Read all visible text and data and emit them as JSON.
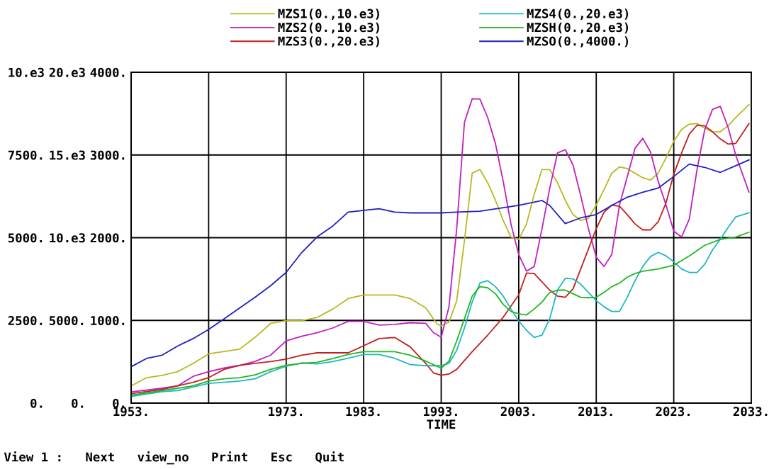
{
  "chart_data": {
    "type": "line",
    "xlabel": "TIME",
    "annotations": [
      "View 1 :   Next   view_no   Print   Esc   Quit"
    ],
    "xlim": [
      1953,
      2033
    ],
    "xticks": [
      {
        "value": 1953,
        "label": "1953."
      },
      {
        "value": 1963,
        "label": null
      },
      {
        "value": 1973,
        "label": "1973."
      },
      {
        "value": 1983,
        "label": "1983."
      },
      {
        "value": 1993,
        "label": "1993."
      },
      {
        "value": 2003,
        "label": "2003."
      },
      {
        "value": 2013,
        "label": "2013."
      },
      {
        "value": 2023,
        "label": "2023."
      },
      {
        "value": 2033,
        "label": "2033."
      }
    ],
    "ylim": [
      0,
      10000
    ],
    "yticks": [
      {
        "value": 0,
        "label": "0."
      },
      {
        "value": 2500,
        "label": "2500."
      },
      {
        "value": 5000,
        "label": "5000."
      },
      {
        "value": 7500,
        "label": "7500."
      },
      {
        "value": 10000,
        "label": "10.e3"
      }
    ],
    "y2lim": [
      0,
      20000
    ],
    "y2ticks": [
      {
        "value": 0,
        "label": "0."
      },
      {
        "value": 5000,
        "label": "5000."
      },
      {
        "value": 10000,
        "label": "10.e3"
      },
      {
        "value": 15000,
        "label": "15.e3"
      },
      {
        "value": 20000,
        "label": "20.e3"
      }
    ],
    "y3lim": [
      0,
      4000
    ],
    "y3ticks": [
      {
        "value": 0,
        "label": "0."
      },
      {
        "value": 1000,
        "label": "1000."
      },
      {
        "value": 2000,
        "label": "2000."
      },
      {
        "value": 3000,
        "label": "3000."
      },
      {
        "value": 4000,
        "label": "4000."
      }
    ],
    "grid": true,
    "legend": "top",
    "marker": "none",
    "line_style": "solid",
    "series": [
      {
        "name": "MZS1(0.,10.e3)",
        "color": "#b8b820",
        "x": [
          1953,
          1955,
          1957,
          1959,
          1961,
          1963,
          1965,
          1967,
          1969,
          1971,
          1973,
          1975,
          1977,
          1979,
          1981,
          1983,
          1987,
          1989,
          1991,
          1992.5,
          1993,
          1994,
          1995,
          1996,
          1997,
          1998,
          1999,
          2000,
          2001,
          2002,
          2003,
          2004,
          2005,
          2006,
          2007,
          2008,
          2009,
          2010,
          2011,
          2012,
          2013,
          2014,
          2015,
          2016,
          2017,
          2018,
          2019,
          2020,
          2021,
          2022,
          2023,
          2024,
          2025,
          2026,
          2027,
          2028,
          2029,
          2030,
          2031,
          2032.7
        ],
        "values": [
          520,
          770,
          840,
          950,
          1200,
          1490,
          1560,
          1630,
          1990,
          2410,
          2490,
          2490,
          2590,
          2840,
          3160,
          3270,
          3270,
          3160,
          2880,
          2380,
          2340,
          2450,
          3090,
          4910,
          6950,
          7060,
          6660,
          6130,
          5520,
          5020,
          4950,
          5410,
          6310,
          7060,
          7060,
          6660,
          6130,
          5700,
          5520,
          5590,
          5990,
          6450,
          6950,
          7140,
          7090,
          6950,
          6810,
          6740,
          6950,
          7410,
          7910,
          8270,
          8430,
          8450,
          8310,
          8200,
          8200,
          8380,
          8630,
          9020
        ]
      },
      {
        "name": "MZS2(0.,10.e3)",
        "color": "#c020c0",
        "x": [
          1953,
          1957,
          1959,
          1961,
          1963,
          1965,
          1967,
          1969,
          1971,
          1973,
          1975,
          1977,
          1979,
          1981,
          1983,
          1985,
          1987,
          1989,
          1991,
          1992,
          1993,
          1994,
          1995,
          1996,
          1997,
          1998,
          1999,
          2000,
          2001,
          2002,
          2003,
          2004,
          2005,
          2006,
          2007,
          2008,
          2009,
          2010,
          2011,
          2012,
          2013,
          2014,
          2015,
          2016,
          2017,
          2018,
          2019,
          2020,
          2021,
          2022,
          2023,
          2024,
          2025,
          2026,
          2027,
          2028,
          2029,
          2030,
          2031,
          2032.7
        ],
        "values": [
          340,
          450,
          520,
          810,
          950,
          1060,
          1140,
          1260,
          1450,
          1880,
          2020,
          2130,
          2270,
          2470,
          2470,
          2360,
          2380,
          2430,
          2410,
          2130,
          1990,
          2910,
          5270,
          8490,
          9200,
          9190,
          8630,
          7840,
          6700,
          5410,
          4490,
          3990,
          4130,
          5270,
          6490,
          7560,
          7660,
          7200,
          6270,
          5270,
          4410,
          4130,
          4490,
          5990,
          6840,
          7700,
          8000,
          7590,
          6700,
          5990,
          5200,
          5020,
          5560,
          7060,
          8270,
          8880,
          8970,
          8340,
          7490,
          6380
        ]
      },
      {
        "name": "MZS3(0.,20.e3)",
        "color": "#c02020",
        "axis": "y2",
        "x": [
          1953,
          1957,
          1959,
          1961,
          1963,
          1965,
          1967,
          1969,
          1971,
          1973,
          1975,
          1977,
          1981,
          1983,
          1985,
          1987,
          1989,
          1991,
          1992,
          1993,
          1994,
          1995,
          1997,
          1999,
          2001,
          2003,
          2004,
          2005,
          2007,
          2008,
          2009,
          2010,
          2011,
          2013,
          2014,
          2015,
          2016,
          2017,
          2018,
          2019,
          2020,
          2021,
          2022,
          2023,
          2024,
          2025,
          2026,
          2027,
          2028,
          2029,
          2030,
          2031,
          2032.7
        ],
        "values": [
          570,
          830,
          1040,
          1260,
          1540,
          2040,
          2290,
          2400,
          2510,
          2660,
          2900,
          3040,
          3040,
          3470,
          3900,
          3970,
          3400,
          2400,
          1830,
          1690,
          1760,
          2040,
          3110,
          4110,
          5190,
          6540,
          7860,
          7830,
          6830,
          6470,
          6400,
          6900,
          8110,
          10540,
          11540,
          11970,
          11900,
          11400,
          10830,
          10470,
          10470,
          10970,
          12110,
          13830,
          15110,
          16260,
          16800,
          16760,
          16400,
          15970,
          15660,
          15700,
          16900
        ]
      },
      {
        "name": "MZS4(0.,20.e3)",
        "color": "#20b8c0",
        "axis": "y2",
        "x": [
          1953,
          1957,
          1959,
          1961,
          1963,
          1965,
          1967,
          1969,
          1971,
          1973,
          1975,
          1977,
          1979,
          1981,
          1983,
          1985,
          1987,
          1989,
          1991,
          1993,
          1994,
          1995,
          1996,
          1997,
          1998,
          1999,
          2000,
          2001,
          2002,
          2003,
          2004,
          2005,
          2006,
          2007,
          2008,
          2009,
          2010,
          2011,
          2012,
          2013,
          2014,
          2015,
          2016,
          2017,
          2018,
          2019,
          2020,
          2021,
          2022,
          2023,
          2024,
          2025,
          2026,
          2027,
          2028,
          2029,
          2030,
          2031,
          2032.7
        ],
        "values": [
          400,
          690,
          760,
          970,
          1190,
          1260,
          1330,
          1470,
          1900,
          2230,
          2430,
          2370,
          2510,
          2710,
          2940,
          2940,
          2710,
          2330,
          2260,
          2260,
          2400,
          3190,
          4540,
          6110,
          7260,
          7400,
          7040,
          6470,
          5690,
          4970,
          4400,
          3970,
          4110,
          5110,
          6830,
          7540,
          7510,
          7190,
          6690,
          6190,
          5830,
          5540,
          5540,
          6400,
          7400,
          8260,
          8860,
          9110,
          8900,
          8540,
          8110,
          7900,
          7900,
          8400,
          9260,
          9900,
          10610,
          11260,
          11500
        ]
      },
      {
        "name": "MZSH(0.,20.e3)",
        "color": "#20b820",
        "axis": "y2",
        "x": [
          1953,
          1957,
          1959,
          1961,
          1963,
          1965,
          1967,
          1969,
          1971,
          1973,
          1975,
          1977,
          1979,
          1981,
          1983,
          1987,
          1989,
          1991,
          1993,
          1994,
          1995,
          1996,
          1997,
          1998,
          1999,
          2000,
          2001,
          2002,
          2003,
          2004,
          2005,
          2006,
          2007,
          2008,
          2009,
          2010,
          2011,
          2012,
          2013,
          2014,
          2015,
          2016,
          2017,
          2018,
          2019,
          2021,
          2023,
          2025,
          2027,
          2029,
          2031,
          2032.7
        ],
        "values": [
          470,
          760,
          900,
          1040,
          1330,
          1470,
          1540,
          1710,
          2040,
          2290,
          2400,
          2470,
          2690,
          2940,
          3110,
          3110,
          2900,
          2540,
          2110,
          2540,
          3760,
          5110,
          6470,
          7040,
          6970,
          6610,
          5970,
          5540,
          5400,
          5330,
          5690,
          6110,
          6690,
          6830,
          6830,
          6610,
          6400,
          6370,
          6400,
          6690,
          7040,
          7260,
          7610,
          7830,
          7970,
          8110,
          8330,
          8900,
          9540,
          9900,
          10040,
          10330
        ]
      },
      {
        "name": "MZSO(0.,4000.)",
        "color": "#2020c0",
        "axis": "y3",
        "x": [
          1953,
          1955,
          1957,
          1959,
          1961,
          1963,
          1965,
          1967,
          1969,
          1971,
          1973,
          1975,
          1977,
          1979,
          1981,
          1983,
          1985,
          1987,
          1989,
          1993,
          1995,
          1998,
          2003,
          2006,
          2007,
          2009,
          2011,
          2013,
          2015,
          2017,
          2019,
          2021,
          2023,
          2025,
          2027,
          2029,
          2031,
          2032.7
        ],
        "values": [
          440,
          540,
          580,
          690,
          780,
          890,
          1020,
          1150,
          1280,
          1420,
          1580,
          1820,
          2010,
          2140,
          2310,
          2330,
          2350,
          2310,
          2300,
          2300,
          2310,
          2320,
          2390,
          2450,
          2390,
          2170,
          2240,
          2280,
          2390,
          2490,
          2550,
          2600,
          2740,
          2890,
          2850,
          2790,
          2870,
          2940
        ]
      }
    ]
  }
}
